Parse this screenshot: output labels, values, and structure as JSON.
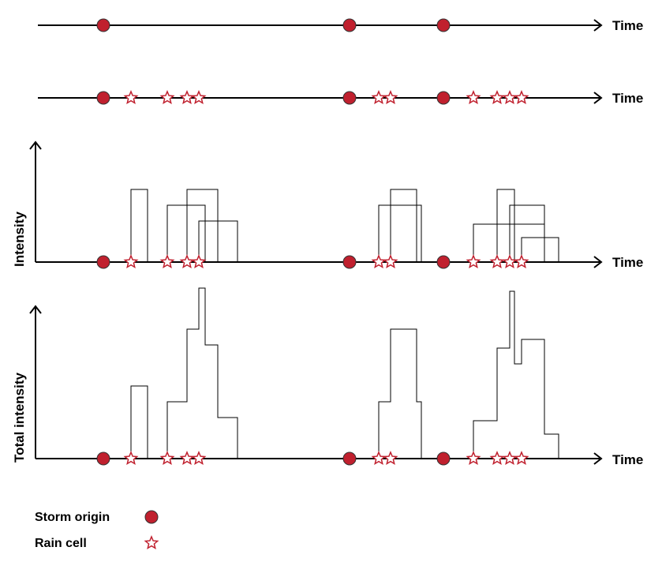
{
  "labels": {
    "time": "Time",
    "intensity": "Intensity",
    "total_intensity": "Total intensity"
  },
  "legend": {
    "storm_origin": "Storm origin",
    "rain_cell": "Rain cell"
  },
  "colors": {
    "storm": "#c0202e",
    "cell": "#c0202e",
    "line": "#000000"
  },
  "storm_origins": [
    131,
    443,
    562
  ],
  "rain_cells": [
    166,
    212,
    237,
    252,
    480,
    495,
    600,
    630,
    646,
    661
  ],
  "cell_pulses": [
    {
      "start": 166,
      "end": 187,
      "intensity": 92
    },
    {
      "start": 212,
      "end": 260,
      "intensity": 72
    },
    {
      "start": 237,
      "end": 276,
      "intensity": 92
    },
    {
      "start": 252,
      "end": 301,
      "intensity": 52
    },
    {
      "start": 480,
      "end": 534,
      "intensity": 72
    },
    {
      "start": 495,
      "end": 528,
      "intensity": 92
    },
    {
      "start": 600,
      "end": 690,
      "intensity": 48
    },
    {
      "start": 630,
      "end": 652,
      "intensity": 92
    },
    {
      "start": 646,
      "end": 690,
      "intensity": 72
    },
    {
      "start": 661,
      "end": 708,
      "intensity": 31
    }
  ]
}
